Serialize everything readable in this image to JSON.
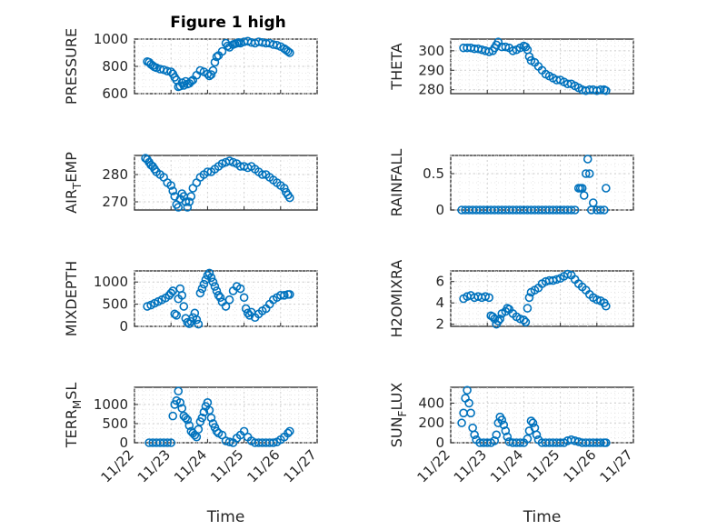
{
  "figure": {
    "title": "Figure 1 high",
    "marker_color": "#0072BD"
  },
  "chart_data": [
    {
      "type": "scatter",
      "ylabel": "PRESSURE",
      "xlabel": "",
      "xlim": [
        0,
        5
      ],
      "ylim": [
        600,
        1000
      ],
      "yticks": [
        600,
        800,
        1000
      ],
      "x_tick_labels": [],
      "grid": true,
      "title": "Figure 1 high",
      "x": [
        0.35,
        0.4,
        0.45,
        0.5,
        0.55,
        0.6,
        0.7,
        0.8,
        0.9,
        1.0,
        1.05,
        1.1,
        1.15,
        1.2,
        1.25,
        1.3,
        1.35,
        1.4,
        1.45,
        1.5,
        1.55,
        1.6,
        1.7,
        1.8,
        1.9,
        2.0,
        2.05,
        2.1,
        2.15,
        2.2,
        2.25,
        2.3,
        2.4,
        2.5,
        2.55,
        2.6,
        2.7,
        2.75,
        2.8,
        2.85,
        2.9,
        3.0,
        3.1,
        3.2,
        3.3,
        3.4,
        3.5,
        3.6,
        3.7,
        3.8,
        3.9,
        4.0,
        4.1,
        4.15,
        4.2,
        4.25
      ],
      "y": [
        835,
        830,
        815,
        805,
        795,
        790,
        780,
        775,
        765,
        760,
        745,
        720,
        700,
        650,
        655,
        680,
        660,
        690,
        670,
        675,
        690,
        700,
        735,
        770,
        760,
        745,
        730,
        740,
        770,
        830,
        870,
        880,
        910,
        970,
        950,
        940,
        960,
        965,
        970,
        975,
        970,
        980,
        985,
        975,
        970,
        980,
        975,
        970,
        970,
        960,
        955,
        945,
        930,
        920,
        910,
        900
      ]
    },
    {
      "type": "scatter",
      "ylabel": "THETA",
      "xlabel": "",
      "xlim": [
        0,
        5
      ],
      "ylim": [
        278,
        306
      ],
      "yticks": [
        280,
        290,
        300
      ],
      "x_tick_labels": [],
      "grid": true,
      "x": [
        0.35,
        0.45,
        0.55,
        0.65,
        0.75,
        0.85,
        0.95,
        1.05,
        1.15,
        1.2,
        1.25,
        1.3,
        1.4,
        1.5,
        1.6,
        1.7,
        1.8,
        1.9,
        2.0,
        2.05,
        2.1,
        2.15,
        2.2,
        2.3,
        2.4,
        2.5,
        2.6,
        2.7,
        2.8,
        2.9,
        3.0,
        3.1,
        3.2,
        3.3,
        3.4,
        3.5,
        3.6,
        3.7,
        3.8,
        3.9,
        4.0,
        4.1,
        4.2,
        4.25
      ],
      "y": [
        301.5,
        301.5,
        301.5,
        301,
        301,
        300.5,
        300,
        299.5,
        300,
        301.5,
        303,
        304.5,
        302,
        302,
        301.5,
        300,
        300.5,
        301.5,
        302.5,
        302,
        300.5,
        297,
        295,
        294,
        292,
        290,
        288,
        287,
        286,
        285,
        285,
        284,
        283,
        283,
        282,
        281,
        280,
        279.5,
        280,
        280,
        279.5,
        280,
        280,
        279.5
      ]
    },
    {
      "type": "scatter",
      "ylabel": "AIR_TEMP",
      "xlabel": "",
      "xlim": [
        0,
        5
      ],
      "ylim": [
        267,
        287
      ],
      "yticks": [
        270,
        280
      ],
      "x_tick_labels": [],
      "grid": true,
      "x": [
        0.3,
        0.35,
        0.4,
        0.45,
        0.5,
        0.55,
        0.6,
        0.7,
        0.8,
        0.9,
        1.0,
        1.05,
        1.1,
        1.15,
        1.2,
        1.25,
        1.3,
        1.35,
        1.4,
        1.45,
        1.5,
        1.55,
        1.6,
        1.7,
        1.8,
        1.9,
        2.0,
        2.1,
        2.2,
        2.3,
        2.4,
        2.5,
        2.6,
        2.7,
        2.8,
        2.9,
        3.0,
        3.1,
        3.2,
        3.3,
        3.4,
        3.5,
        3.6,
        3.7,
        3.8,
        3.9,
        4.0,
        4.1,
        4.15,
        4.2,
        4.25
      ],
      "y": [
        286,
        285.5,
        284.5,
        283.5,
        283,
        282,
        281,
        280,
        279,
        277,
        276,
        274,
        272,
        269,
        268,
        271,
        273,
        272,
        270,
        268,
        270,
        272,
        275,
        277,
        279,
        280,
        281,
        281,
        282,
        283,
        284,
        284.5,
        285,
        284.5,
        284,
        283,
        283,
        282.5,
        283,
        282,
        281,
        280,
        280,
        279,
        278,
        277,
        276,
        275,
        273.5,
        272.5,
        271.5
      ]
    },
    {
      "type": "scatter",
      "ylabel": "RAINFALL",
      "xlabel": "",
      "xlim": [
        0,
        5
      ],
      "ylim": [
        0,
        0.75
      ],
      "yticks": [
        0,
        0.5
      ],
      "x_tick_labels": [],
      "grid": true,
      "x": [
        0.3,
        0.4,
        0.5,
        0.6,
        0.7,
        0.8,
        0.9,
        1.0,
        1.1,
        1.2,
        1.3,
        1.4,
        1.5,
        1.6,
        1.7,
        1.8,
        1.9,
        2.0,
        2.1,
        2.2,
        2.3,
        2.4,
        2.5,
        2.6,
        2.7,
        2.8,
        2.9,
        3.0,
        3.1,
        3.2,
        3.3,
        3.4,
        3.5,
        3.55,
        3.6,
        3.65,
        3.7,
        3.75,
        3.8,
        3.85,
        3.9,
        4.0,
        4.1,
        4.2,
        4.25
      ],
      "y": [
        0,
        0,
        0,
        0,
        0,
        0,
        0,
        0,
        0,
        0,
        0,
        0,
        0,
        0,
        0,
        0,
        0,
        0,
        0,
        0,
        0,
        0,
        0,
        0,
        0,
        0,
        0,
        0,
        0,
        0,
        0,
        0,
        0.3,
        0.3,
        0.3,
        0.2,
        0.5,
        0.7,
        0.5,
        0,
        0.1,
        0,
        0,
        0,
        0.3
      ]
    },
    {
      "type": "scatter",
      "ylabel": "MIXDEPTH",
      "xlabel": "",
      "xlim": [
        0,
        5
      ],
      "ylim": [
        0,
        1250
      ],
      "yticks": [
        0,
        500,
        1000
      ],
      "x_tick_labels": [],
      "grid": true,
      "x": [
        0.35,
        0.45,
        0.55,
        0.65,
        0.75,
        0.85,
        0.95,
        1.0,
        1.05,
        1.1,
        1.15,
        1.2,
        1.25,
        1.3,
        1.35,
        1.4,
        1.45,
        1.5,
        1.55,
        1.6,
        1.65,
        1.7,
        1.75,
        1.8,
        1.85,
        1.9,
        1.95,
        2.0,
        2.05,
        2.1,
        2.15,
        2.2,
        2.25,
        2.3,
        2.35,
        2.4,
        2.5,
        2.6,
        2.7,
        2.8,
        2.9,
        3.0,
        3.05,
        3.1,
        3.15,
        3.2,
        3.3,
        3.4,
        3.5,
        3.6,
        3.7,
        3.8,
        3.9,
        4.0,
        4.1,
        4.2,
        4.25
      ],
      "y": [
        450,
        480,
        520,
        560,
        600,
        640,
        700,
        750,
        800,
        280,
        250,
        620,
        850,
        700,
        450,
        180,
        90,
        60,
        110,
        200,
        300,
        150,
        50,
        750,
        850,
        950,
        1050,
        1150,
        1200,
        1100,
        1000,
        900,
        800,
        700,
        650,
        550,
        450,
        600,
        800,
        900,
        850,
        650,
        400,
        300,
        250,
        320,
        200,
        280,
        350,
        400,
        500,
        600,
        650,
        700,
        700,
        720,
        720
      ]
    },
    {
      "type": "scatter",
      "ylabel": "H2OMIXRA",
      "xlabel": "",
      "xlim": [
        0,
        5
      ],
      "ylim": [
        1.8,
        7
      ],
      "yticks": [
        2,
        4,
        6
      ],
      "x_tick_labels": [],
      "grid": true,
      "x": [
        0.35,
        0.45,
        0.55,
        0.65,
        0.75,
        0.85,
        0.95,
        1.05,
        1.1,
        1.15,
        1.2,
        1.25,
        1.3,
        1.35,
        1.4,
        1.5,
        1.55,
        1.6,
        1.7,
        1.8,
        1.9,
        2.0,
        2.05,
        2.1,
        2.15,
        2.2,
        2.3,
        2.4,
        2.5,
        2.6,
        2.7,
        2.8,
        2.9,
        3.0,
        3.1,
        3.2,
        3.3,
        3.4,
        3.5,
        3.6,
        3.7,
        3.8,
        3.9,
        4.0,
        4.1,
        4.2,
        4.25
      ],
      "y": [
        4.4,
        4.6,
        4.7,
        4.5,
        4.6,
        4.5,
        4.6,
        4.5,
        2.8,
        2.7,
        2.5,
        2.0,
        2.3,
        2.5,
        3.0,
        3.2,
        3.5,
        3.4,
        3.0,
        2.7,
        2.5,
        2.4,
        2.2,
        3.5,
        4.5,
        5.0,
        5.2,
        5.4,
        5.8,
        6.0,
        6.1,
        6.1,
        6.2,
        6.3,
        6.5,
        6.7,
        6.6,
        6.2,
        5.8,
        5.5,
        5.2,
        4.8,
        4.5,
        4.3,
        4.2,
        4.0,
        3.7
      ]
    },
    {
      "type": "scatter",
      "ylabel": "TERR_MSL",
      "xlabel": "Time",
      "xlim": [
        0,
        5
      ],
      "ylim": [
        0,
        1450
      ],
      "yticks": [
        0,
        500,
        1000
      ],
      "x_tick_labels": [
        "11/22",
        "11/23",
        "11/24",
        "11/25",
        "11/26",
        "11/27"
      ],
      "grid": true,
      "x": [
        0.4,
        0.5,
        0.6,
        0.7,
        0.8,
        0.9,
        1.0,
        1.05,
        1.1,
        1.15,
        1.2,
        1.25,
        1.3,
        1.35,
        1.4,
        1.45,
        1.5,
        1.55,
        1.6,
        1.65,
        1.7,
        1.75,
        1.8,
        1.85,
        1.9,
        1.95,
        2.0,
        2.05,
        2.1,
        2.15,
        2.2,
        2.25,
        2.3,
        2.4,
        2.5,
        2.6,
        2.7,
        2.8,
        2.9,
        3.0,
        3.1,
        3.2,
        3.3,
        3.4,
        3.5,
        3.6,
        3.7,
        3.8,
        3.9,
        4.0,
        4.1,
        4.2,
        4.25
      ],
      "y": [
        0,
        0,
        0,
        0,
        0,
        0,
        0,
        700,
        1000,
        1100,
        1350,
        1050,
        900,
        700,
        650,
        600,
        450,
        300,
        250,
        200,
        150,
        350,
        550,
        650,
        800,
        950,
        1050,
        850,
        650,
        500,
        400,
        300,
        250,
        200,
        50,
        20,
        0,
        120,
        200,
        300,
        150,
        50,
        0,
        0,
        0,
        0,
        0,
        0,
        20,
        80,
        150,
        250,
        300
      ]
    },
    {
      "type": "scatter",
      "ylabel": "SUN_FLUX",
      "xlabel": "Time",
      "xlim": [
        0,
        5
      ],
      "ylim": [
        0,
        560
      ],
      "yticks": [
        0,
        200,
        400
      ],
      "x_tick_labels": [
        "11/22",
        "11/23",
        "11/24",
        "11/25",
        "11/26",
        "11/27"
      ],
      "grid": true,
      "x": [
        0.3,
        0.35,
        0.4,
        0.45,
        0.5,
        0.55,
        0.6,
        0.65,
        0.7,
        0.8,
        0.9,
        1.0,
        1.1,
        1.2,
        1.25,
        1.3,
        1.35,
        1.4,
        1.45,
        1.5,
        1.55,
        1.6,
        1.7,
        1.8,
        1.9,
        2.0,
        2.1,
        2.15,
        2.2,
        2.25,
        2.3,
        2.35,
        2.4,
        2.5,
        2.6,
        2.7,
        2.8,
        2.9,
        3.0,
        3.1,
        3.2,
        3.3,
        3.4,
        3.5,
        3.6,
        3.7,
        3.8,
        3.9,
        4.0,
        4.1,
        4.2,
        4.25
      ],
      "y": [
        200,
        300,
        450,
        530,
        400,
        300,
        150,
        80,
        30,
        0,
        0,
        0,
        0,
        20,
        80,
        200,
        260,
        230,
        180,
        120,
        60,
        10,
        0,
        0,
        0,
        0,
        40,
        120,
        220,
        200,
        150,
        80,
        30,
        0,
        0,
        0,
        0,
        0,
        0,
        0,
        20,
        30,
        20,
        10,
        0,
        0,
        0,
        0,
        0,
        0,
        0,
        0
      ]
    }
  ]
}
